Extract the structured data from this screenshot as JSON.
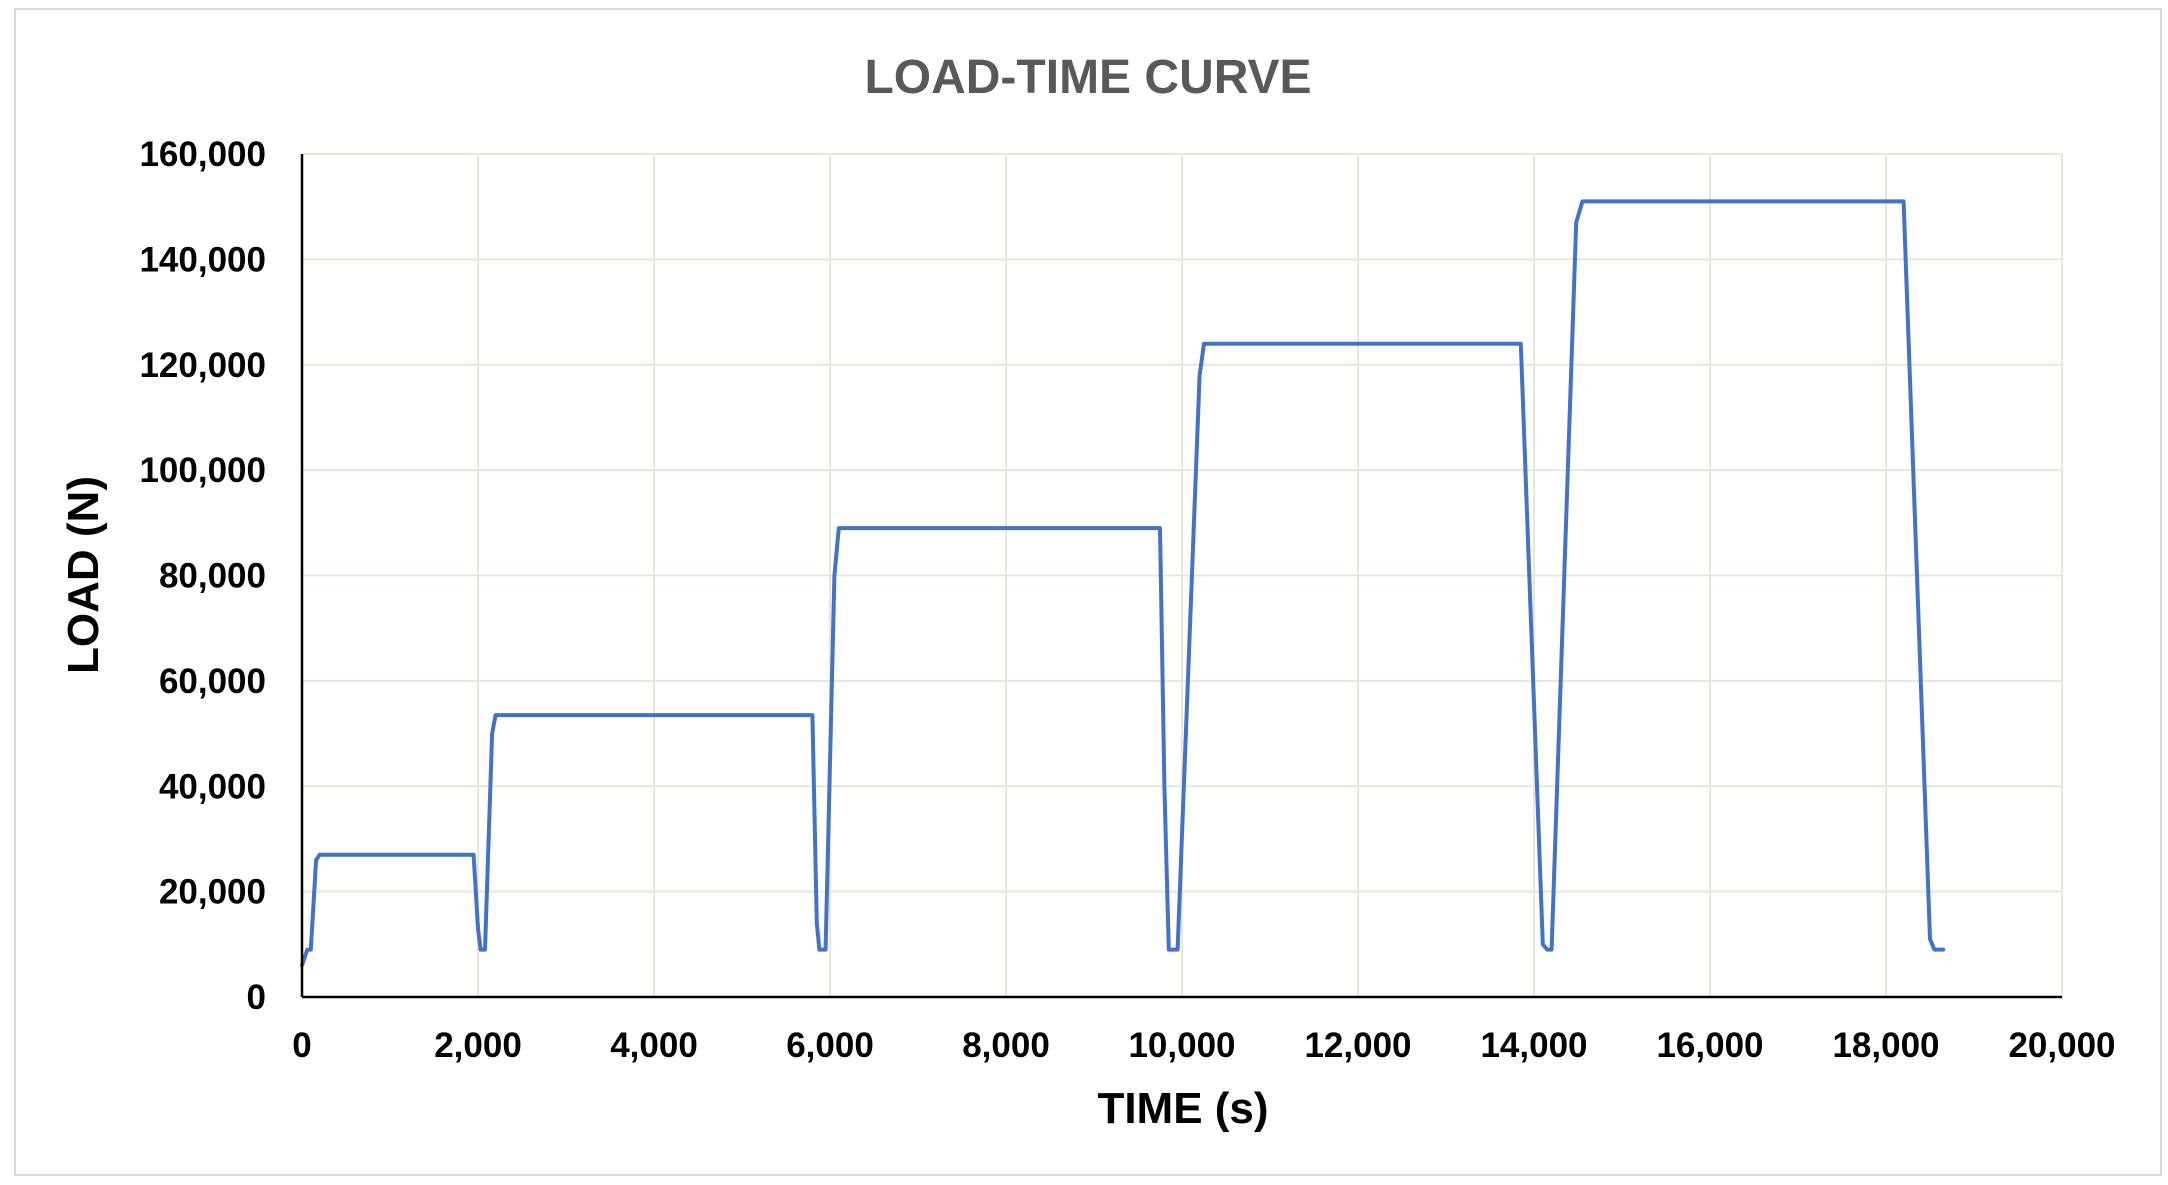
{
  "chart_data": {
    "type": "line",
    "title": "LOAD-TIME CURVE",
    "xlabel": "TIME (s)",
    "ylabel": "LOAD (N)",
    "xlim": [
      0,
      20000
    ],
    "ylim": [
      0,
      160000
    ],
    "xticks": [
      0,
      2000,
      4000,
      6000,
      8000,
      10000,
      12000,
      14000,
      16000,
      18000,
      20000
    ],
    "yticks": [
      0,
      20000,
      40000,
      60000,
      80000,
      100000,
      120000,
      140000,
      160000
    ],
    "xtick_labels": [
      "0",
      "2,000",
      "4,000",
      "6,000",
      "8,000",
      "10,000",
      "12,000",
      "14,000",
      "16,000",
      "18,000",
      "20,000"
    ],
    "ytick_labels": [
      "0",
      "20,000",
      "40,000",
      "60,000",
      "80,000",
      "100,000",
      "120,000",
      "140,000",
      "160,000"
    ],
    "grid": true,
    "legend": "none",
    "series": [
      {
        "color": "#4472c4",
        "points": [
          [
            0,
            6000
          ],
          [
            60,
            9000
          ],
          [
            100,
            9000
          ],
          [
            160,
            26000
          ],
          [
            200,
            27000
          ],
          [
            1950,
            27000
          ],
          [
            2000,
            13000
          ],
          [
            2030,
            9000
          ],
          [
            2080,
            9000
          ],
          [
            2160,
            50000
          ],
          [
            2200,
            53500
          ],
          [
            5800,
            53500
          ],
          [
            5850,
            14000
          ],
          [
            5880,
            9000
          ],
          [
            5950,
            9000
          ],
          [
            6050,
            80000
          ],
          [
            6100,
            89000
          ],
          [
            9750,
            89000
          ],
          [
            9800,
            40000
          ],
          [
            9850,
            9000
          ],
          [
            9950,
            9000
          ],
          [
            10200,
            118000
          ],
          [
            10250,
            124000
          ],
          [
            13850,
            124000
          ],
          [
            14100,
            10000
          ],
          [
            14150,
            9000
          ],
          [
            14200,
            9000
          ],
          [
            14480,
            147000
          ],
          [
            14550,
            151000
          ],
          [
            18200,
            151000
          ],
          [
            18500,
            11000
          ],
          [
            18550,
            9000
          ],
          [
            18650,
            9000
          ]
        ]
      }
    ]
  }
}
